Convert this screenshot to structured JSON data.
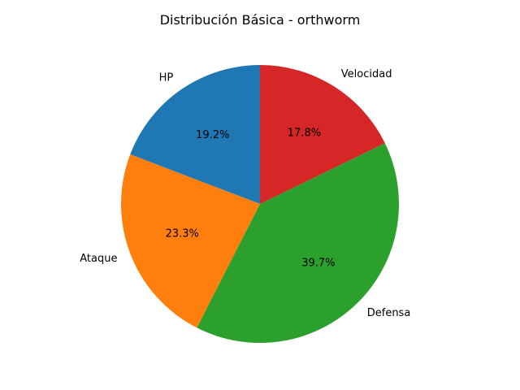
{
  "chart_data": {
    "type": "pie",
    "title": "Distribución Básica - orthworm",
    "start_angle_deg": 90,
    "direction": "counterclockwise",
    "slices": [
      {
        "label": "HP",
        "value": 19.2,
        "pct_label": "19.2%",
        "color": "#1f77b4"
      },
      {
        "label": "Ataque",
        "value": 23.3,
        "pct_label": "23.3%",
        "color": "#ff7f0e"
      },
      {
        "label": "Defensa",
        "value": 39.7,
        "pct_label": "39.7%",
        "color": "#2ca02c"
      },
      {
        "label": "Velocidad",
        "value": 17.8,
        "pct_label": "17.8%",
        "color": "#d62728"
      }
    ]
  }
}
